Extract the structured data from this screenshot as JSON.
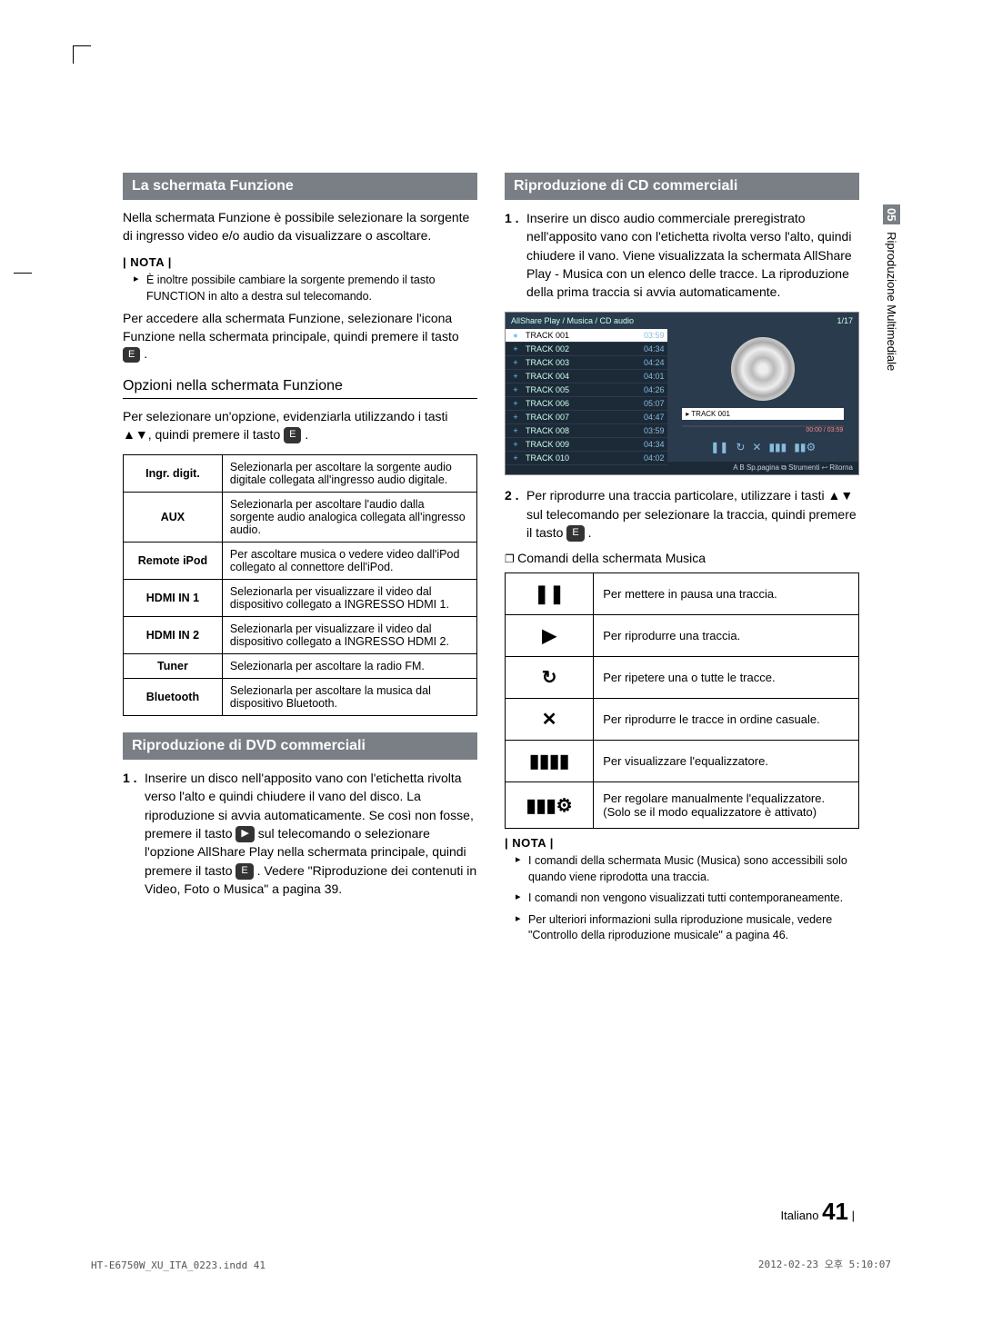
{
  "sideTab": {
    "chapter": "05",
    "title": "Riproduzione Multimediale"
  },
  "left": {
    "sec1": {
      "heading": "La schermata Funzione",
      "p1": "Nella schermata Funzione è possibile selezionare la sorgente di ingresso video e/o audio da visualizzare o ascoltare.",
      "notaLabel": "NOTA",
      "nota1": "È inoltre possibile cambiare la sorgente premendo il tasto FUNCTION in alto a destra sul telecomando.",
      "p2a": "Per accedere alla schermata Funzione, selezionare l'icona Funzione nella schermata principale, quindi premere il tasto ",
      "p2btn": "E",
      "p2b": ".",
      "subhead": "Opzioni nella schermata Funzione",
      "p3a": "Per selezionare un'opzione, evidenziarla utilizzando i tasti ▲▼, quindi premere il tasto ",
      "p3btn": "E",
      "p3b": ".",
      "table": [
        {
          "label": "Ingr. digit.",
          "desc": "Selezionarla per ascoltare la sorgente audio digitale collegata all'ingresso audio digitale."
        },
        {
          "label": "AUX",
          "desc": "Selezionarla per ascoltare l'audio dalla sorgente audio analogica collegata all'ingresso audio."
        },
        {
          "label": "Remote iPod",
          "desc": "Per ascoltare musica o vedere video dall'iPod collegato al connettore dell'iPod."
        },
        {
          "label": "HDMI IN 1",
          "desc": "Selezionarla per visualizzare il video dal dispositivo collegato a INGRESSO HDMI 1."
        },
        {
          "label": "HDMI IN 2",
          "desc": "Selezionarla per visualizzare il video dal dispositivo collegato a INGRESSO HDMI 2."
        },
        {
          "label": "Tuner",
          "desc": "Selezionarla per ascoltare la radio FM."
        },
        {
          "label": "Bluetooth",
          "desc": "Selezionarla per ascoltare la musica dal dispositivo Bluetooth."
        }
      ]
    },
    "sec2": {
      "heading": "Riproduzione di DVD commerciali",
      "step1num": "1 .",
      "step1a": "Inserire un disco nell'apposito vano con l'etichetta rivolta verso l'alto e quindi chiudere il vano del disco. La riproduzione si avvia automaticamente. Se così non fosse, premere il tasto ",
      "step1playbtn": "▶",
      "step1b": " sul telecomando o selezionare l'opzione AllShare Play nella schermata principale, quindi premere il tasto ",
      "step1ebtn": "E",
      "step1c": ". Vedere \"Riproduzione dei contenuti in Video, Foto o Musica\" a pagina 39."
    }
  },
  "right": {
    "sec1": {
      "heading": "Riproduzione di CD commerciali",
      "step1num": "1 .",
      "step1": "Inserire un disco audio commerciale preregistrato nell'apposito vano con l'etichetta rivolta verso l'alto, quindi chiudere il vano. Viene visualizzata la schermata AllShare Play - Musica con un elenco delle tracce. La riproduzione della prima traccia si avvia automaticamente.",
      "screenshot": {
        "header": "AllShare Play / Musica /     CD audio",
        "counter": "1/17",
        "tracks": [
          {
            "n": "TRACK 001",
            "d": "03:59",
            "sel": true,
            "ic": "●"
          },
          {
            "n": "TRACK 002",
            "d": "04:34",
            "ic": "+"
          },
          {
            "n": "TRACK 003",
            "d": "04:24",
            "ic": "+"
          },
          {
            "n": "TRACK 004",
            "d": "04:01",
            "ic": "+"
          },
          {
            "n": "TRACK 005",
            "d": "04:26",
            "ic": "+"
          },
          {
            "n": "TRACK 006",
            "d": "05:07",
            "ic": "+"
          },
          {
            "n": "TRACK 007",
            "d": "04:47",
            "ic": "+"
          },
          {
            "n": "TRACK 008",
            "d": "03:59",
            "ic": "+"
          },
          {
            "n": "TRACK 009",
            "d": "04:34",
            "ic": "+"
          },
          {
            "n": "TRACK 010",
            "d": "04:02",
            "ic": "+"
          }
        ],
        "nowPlaying": "▸ TRACK 001",
        "time": "00:00 / 03:59",
        "footer": "A B Sp.pagina  ⧉ Strumenti  ↩ Ritorna"
      },
      "step2num": "2 .",
      "step2a": "Per riprodurre una traccia particolare, utilizzare i tasti ▲▼ sul telecomando per selezionare la traccia, quindi premere il tasto ",
      "step2btn": "E",
      "step2b": ".",
      "subsub": "Comandi della schermata Musica",
      "controls": [
        {
          "symbol": "❚❚",
          "desc": "Per mettere in pausa una traccia."
        },
        {
          "symbol": "▶",
          "desc": "Per riprodurre una traccia."
        },
        {
          "symbol": "↻",
          "desc": "Per ripetere una o tutte le tracce."
        },
        {
          "symbol": "✕",
          "desc": "Per riprodurre le tracce in ordine casuale."
        },
        {
          "symbol": "▮▮▮▮",
          "desc": "Per visualizzare l'equalizzatore."
        },
        {
          "symbol": "▮▮▮⚙",
          "desc": "Per regolare manualmente l'equalizzatore. (Solo se il modo equalizzatore è attivato)"
        }
      ],
      "notaLabel": "NOTA",
      "notes": [
        "I comandi della schermata Music (Musica) sono accessibili solo quando viene riprodotta una traccia.",
        "I comandi non vengono visualizzati tutti contemporaneamente.",
        "Per ulteriori informazioni sulla riproduzione musicale, vedere \"Controllo della riproduzione musicale\" a pagina 46."
      ]
    }
  },
  "pageFooter": {
    "lang": "Italiano",
    "page": "41"
  },
  "printFooter": {
    "left": "HT-E6750W_XU_ITA_0223.indd   41",
    "right": "2012-02-23   오후 5:10:07"
  }
}
